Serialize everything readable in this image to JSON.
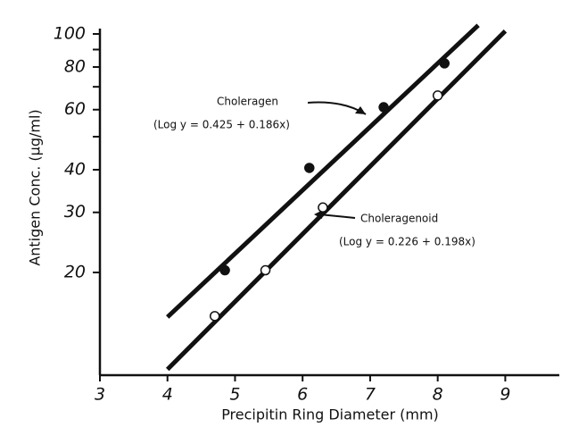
{
  "chart_data": {
    "type": "scatter",
    "x_label": "Precipitin Ring Diameter (mm)",
    "y_label": "Antigen Conc. (µg/ml)",
    "xlim": [
      3,
      9.8
    ],
    "xticks": [
      3,
      4,
      5,
      6,
      7,
      8,
      9
    ],
    "ylim": [
      10,
      100
    ],
    "yticks": [
      20,
      30,
      40,
      60,
      80,
      100
    ],
    "yminor_ticks": [
      50,
      70,
      90
    ],
    "y_log": true,
    "series": [
      {
        "name": "Choleragen",
        "equation": "(Log y = 0.425 + 0.186x)",
        "marker": "filled",
        "color": "#111",
        "x": [
          4.85,
          6.1,
          7.2,
          8.1
        ],
        "values": [
          20.3,
          40.5,
          61,
          82
        ],
        "fit": {
          "x": [
            4,
            8.6
          ],
          "values": [
            14.8,
            106
          ]
        }
      },
      {
        "name": "Choleragenoid",
        "equation": "(Log y = 0.226 + 0.198x)",
        "marker": "open",
        "color": "#111",
        "x": [
          4.7,
          5.45,
          6.3,
          8.0
        ],
        "values": [
          14.9,
          20.3,
          31,
          66
        ],
        "fit": {
          "x": [
            4,
            9
          ],
          "values": [
            10.4,
            102
          ]
        }
      }
    ]
  }
}
